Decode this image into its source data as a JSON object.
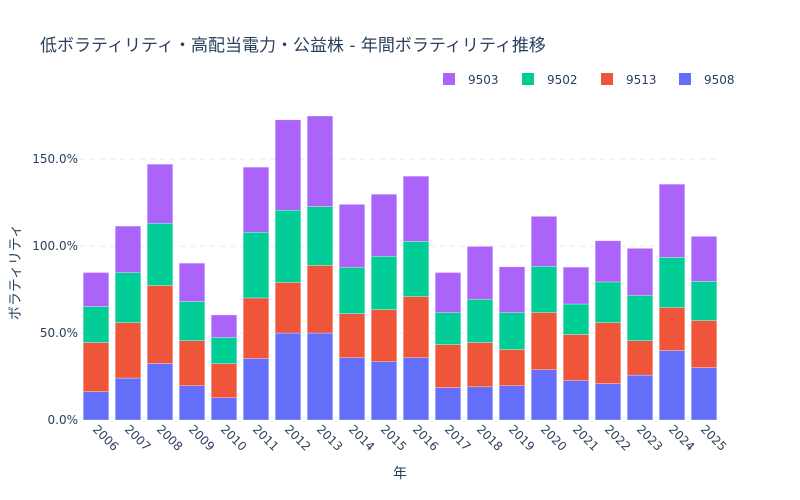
{
  "chart_data": {
    "type": "bar",
    "barmode": "stack",
    "title": "低ボラティリティ・高配当電力・公益株 - 年間ボラティリティ推移",
    "xlabel": "年",
    "ylabel": "ボラティリティ",
    "categories": [
      "2006",
      "2007",
      "2008",
      "2009",
      "2010",
      "2011",
      "2012",
      "2013",
      "2014",
      "2015",
      "2016",
      "2017",
      "2018",
      "2019",
      "2020",
      "2021",
      "2022",
      "2023",
      "2024",
      "2025"
    ],
    "y_ticks": [
      "0.0%",
      "50.0%",
      "100.0%",
      "150.0%"
    ],
    "y_tick_values": [
      0,
      50,
      100,
      150
    ],
    "ylim": [
      0,
      184
    ],
    "grid": true,
    "legend_position": "top-right",
    "series": [
      {
        "name": "9508",
        "color": "#636efa",
        "values": [
          16.3,
          24.1,
          32.4,
          19.7,
          12.8,
          35.3,
          50.0,
          50.0,
          35.8,
          33.5,
          35.8,
          18.6,
          19.1,
          19.7,
          28.9,
          22.6,
          20.9,
          25.8,
          39.9,
          30.1
        ]
      },
      {
        "name": "9513",
        "color": "#ef553b",
        "values": [
          28.2,
          31.9,
          44.9,
          25.9,
          19.6,
          34.9,
          29.1,
          38.9,
          25.4,
          30.0,
          35.2,
          24.7,
          25.4,
          20.8,
          32.9,
          26.5,
          35.1,
          19.8,
          24.8,
          27.1
        ]
      },
      {
        "name": "9502",
        "color": "#00cc96",
        "values": [
          20.7,
          28.8,
          35.8,
          22.5,
          15.0,
          37.7,
          41.5,
          33.8,
          26.5,
          30.6,
          31.7,
          18.5,
          24.8,
          21.3,
          26.5,
          17.6,
          23.4,
          26.0,
          28.8,
          22.5
        ]
      },
      {
        "name": "9503",
        "color": "#ab63fa",
        "values": [
          19.6,
          26.7,
          34.0,
          22.1,
          13.0,
          37.5,
          52.0,
          52.1,
          36.3,
          35.7,
          37.5,
          23.0,
          30.5,
          26.3,
          28.8,
          21.2,
          23.7,
          27.1,
          42.1,
          25.9
        ]
      }
    ],
    "legend_order": [
      "9503",
      "9502",
      "9513",
      "9508"
    ]
  }
}
